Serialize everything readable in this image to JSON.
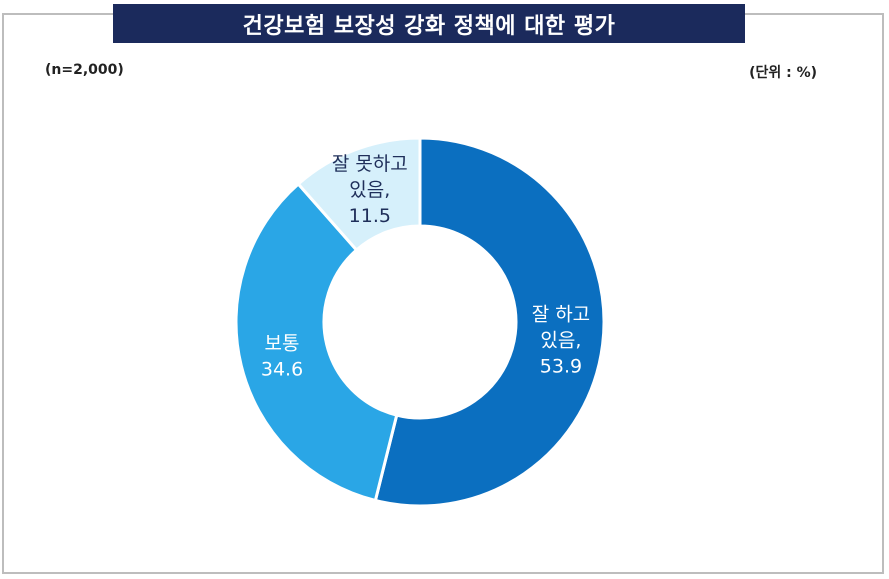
{
  "title": "건강보험 보장성 강화 정책에 대한 평가",
  "sample_size": "(n=2,000)",
  "unit": "(단위 : %)",
  "chart_data": {
    "type": "pie",
    "donut": true,
    "title": "건강보험 보장성 강화 정책에 대한 평가",
    "unit": "%",
    "slices": [
      {
        "label_lines": [
          "잘 하고",
          "있음,"
        ],
        "value": 53.9,
        "value_text": "53.9",
        "color": "#0b6fc0",
        "text_color": "#ffffff"
      },
      {
        "label_lines": [
          "보통"
        ],
        "value": 34.6,
        "value_text": "34.6",
        "color": "#2aa6e6",
        "text_color": "#ffffff"
      },
      {
        "label_lines": [
          "잘 못하고",
          "있음,"
        ],
        "value": 11.5,
        "value_text": "11.5",
        "color": "#d6f0fb",
        "text_color": "#1f2f5a"
      }
    ]
  }
}
